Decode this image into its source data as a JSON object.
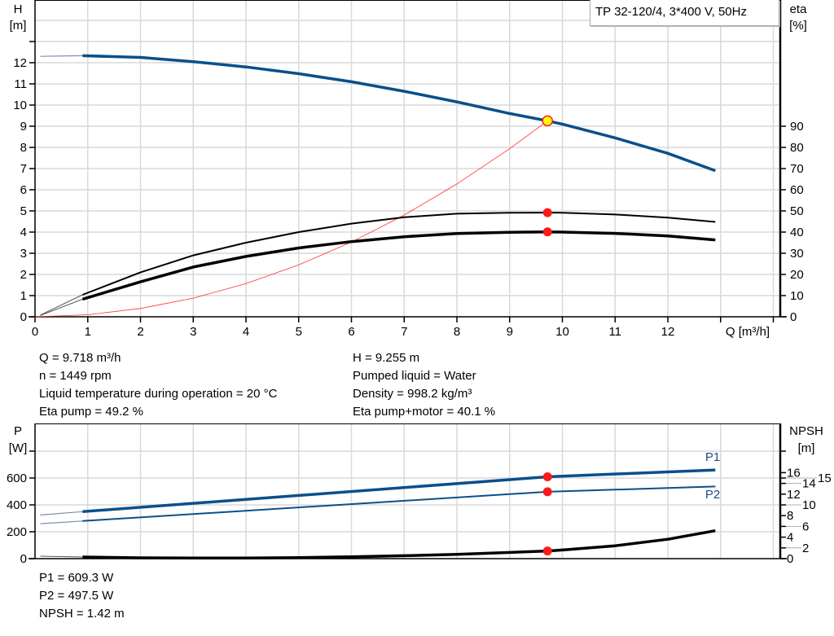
{
  "chart_data": [
    {
      "type": "line",
      "title": "TP 32-120/4, 3*400 V, 50Hz",
      "xlabel": "Q [m³/h]",
      "ylabel": "H\n[m]",
      "ylabel_parts": [
        "H",
        "[m]"
      ],
      "y2label_parts": [
        "eta",
        "[%]"
      ],
      "xlim": [
        0,
        14
      ],
      "ylim": [
        0,
        14
      ],
      "y2lim": [
        0,
        140
      ],
      "grid": true,
      "xticks": [
        "0",
        "1",
        "2",
        "3",
        "4",
        "5",
        "6",
        "7",
        "8",
        "9",
        "10",
        "11",
        "12"
      ],
      "yticks": [
        "0",
        "1",
        "2",
        "3",
        "4",
        "5",
        "6",
        "7",
        "8",
        "9",
        "10",
        "11",
        "12"
      ],
      "y2ticks": [
        "0",
        "10",
        "20",
        "30",
        "40",
        "50",
        "60",
        "70",
        "80",
        "90"
      ],
      "series": [
        {
          "id": "H",
          "axis": "left",
          "color": "#0b4f8a",
          "x": [
            0.1,
            0.9,
            2,
            3,
            4,
            5,
            6,
            7,
            8,
            9,
            9.718,
            10,
            11,
            12,
            12.9
          ],
          "y": [
            12.3,
            12.33,
            12.25,
            12.05,
            11.8,
            11.48,
            11.1,
            10.65,
            10.15,
            9.6,
            9.255,
            9.1,
            8.45,
            7.72,
            6.9
          ]
        },
        {
          "id": "eta-pump",
          "axis": "right",
          "color": "#000000",
          "x": [
            0.1,
            0.9,
            2,
            3,
            4,
            5,
            6,
            7,
            8,
            9,
            9.718,
            10,
            11,
            12,
            12.9
          ],
          "y": [
            0.8,
            10.4,
            21,
            29,
            35,
            40,
            44,
            47,
            48.7,
            49.1,
            49.2,
            49.1,
            48.3,
            46.8,
            44.8
          ]
        },
        {
          "id": "eta-pump-motor",
          "axis": "right",
          "color": "#000000",
          "x": [
            0.1,
            0.9,
            2,
            3,
            4,
            5,
            6,
            7,
            8,
            9,
            9.718,
            10,
            11,
            12,
            12.9
          ],
          "y": [
            0.6,
            8.3,
            16.5,
            23.5,
            28.5,
            32.5,
            35.5,
            37.8,
            39.3,
            39.9,
            40.1,
            40.0,
            39.4,
            38.2,
            36.3
          ]
        },
        {
          "id": "system-curve",
          "axis": "left",
          "color": "#ff3030",
          "x": [
            0,
            1,
            2,
            3,
            4,
            5,
            6,
            7,
            8,
            9,
            9.718
          ],
          "y": [
            0,
            0.098,
            0.392,
            0.882,
            1.568,
            2.45,
            3.528,
            4.802,
            6.272,
            7.938,
            9.255
          ]
        }
      ],
      "duty_point": {
        "Q": 9.718,
        "H": 9.255,
        "eta_pump": 49.2,
        "eta_pump_motor": 40.1
      }
    },
    {
      "type": "line",
      "ylabel_parts": [
        "P",
        "[W]"
      ],
      "y2label_parts": [
        "NPSH",
        "[m]"
      ],
      "xlim": [
        0,
        14
      ],
      "ylim": [
        0,
        1000
      ],
      "y2lim": [
        0,
        25
      ],
      "grid": true,
      "yticks": [
        "0",
        "200",
        "400",
        "600"
      ],
      "y2ticks": [
        "0",
        "2",
        "4",
        "6",
        "8",
        "10",
        "12",
        "14",
        "15",
        "16"
      ],
      "series": [
        {
          "id": "P1",
          "name": "P1",
          "axis": "left",
          "color": "#0b4f8a",
          "x": [
            0.1,
            0.9,
            9.718,
            12.9
          ],
          "y": [
            325,
            350,
            609.3,
            660
          ]
        },
        {
          "id": "P2",
          "name": "P2",
          "axis": "left",
          "color": "#0b4f8a",
          "x": [
            0.1,
            0.9,
            9.718,
            12.9
          ],
          "y": [
            260,
            280,
            497.5,
            537
          ]
        },
        {
          "id": "NPSH",
          "axis": "right",
          "color": "#000000",
          "x": [
            0.1,
            0.9,
            2,
            3,
            4,
            5,
            6,
            7,
            8,
            9,
            9.718,
            10,
            11,
            12,
            12.9
          ],
          "y": [
            0.45,
            0.3,
            0.15,
            0.1,
            0.12,
            0.2,
            0.35,
            0.55,
            0.8,
            1.15,
            1.42,
            1.6,
            2.4,
            3.6,
            5.2
          ]
        }
      ],
      "duty_point": {
        "P1": 609.3,
        "P2": 497.5,
        "NPSH": 1.42
      }
    }
  ],
  "info_left": [
    "Q = 9.718 m³/h",
    "n = 1449 rpm",
    "Liquid temperature during operation = 20 °C",
    "Eta pump = 49.2 %"
  ],
  "info_right": [
    "H = 9.255 m",
    "Pumped liquid = Water",
    "Density = 998.2 kg/m³",
    "Eta pump+motor = 40.1 %"
  ],
  "info_bottom": [
    "P1 = 609.3 W",
    "P2 = 497.5 W",
    "NPSH = 1.42 m"
  ],
  "colors": {
    "curve_blue": "#0b4f8a",
    "marker_red": "#ff1a1a",
    "marker_yellow": "#ffff00",
    "grid": "#d9d9d9"
  }
}
